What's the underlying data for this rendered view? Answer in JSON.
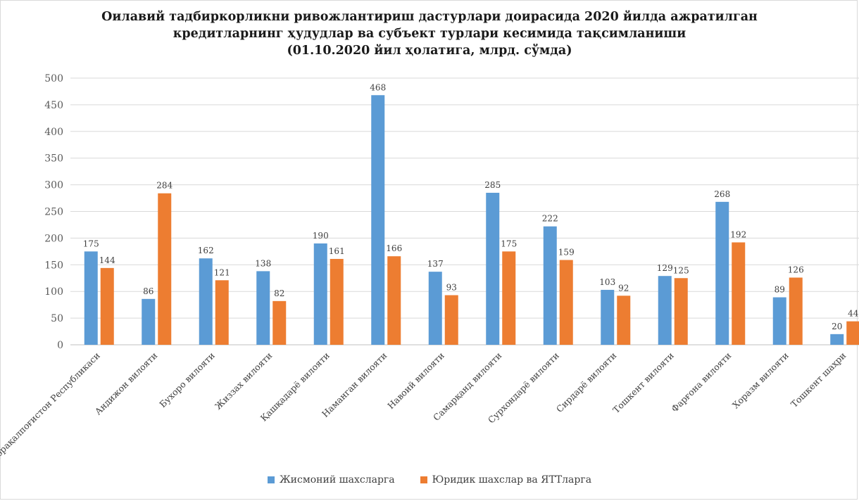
{
  "chart_data": {
    "type": "bar",
    "title": [
      "Оилавий тадбиркорликни ривожлантириш дастурлари доирасида 2020 йилда ажратилган",
      "кредитларнинг ҳудудлар ва субъект турлари кесимида тақсимланиши",
      "(01.10.2020 йил ҳолатига, млрд. сўмда)"
    ],
    "categories": [
      "Қорақалпоғистон Республикаси",
      "Андижон вилояти",
      "Бухоро вилояти",
      "Жиззах вилояти",
      "Қашқадарё вилояти",
      "Наманган вилояти",
      "Навоий вилояти",
      "Самарқанд вилояти",
      "Сурхондарё вилояти",
      "Сирдарё вилояти",
      "Тошкент вилояти",
      "Фарғона вилояти",
      "Хоразм вилояти",
      "Тошкент шаҳри"
    ],
    "series": [
      {
        "name": "Жисмоний шахсларга",
        "color": "#5b9bd5",
        "values": [
          175,
          86,
          162,
          138,
          190,
          468,
          137,
          285,
          222,
          103,
          129,
          268,
          89,
          20
        ]
      },
      {
        "name": "Юридик шахслар ва ЯТТларга",
        "color": "#ed7d31",
        "values": [
          144,
          284,
          121,
          82,
          161,
          166,
          93,
          175,
          159,
          92,
          125,
          192,
          126,
          44
        ]
      }
    ],
    "ylim": [
      0,
      500
    ],
    "yticks": [
      0,
      50,
      100,
      150,
      200,
      250,
      300,
      350,
      400,
      450,
      500
    ],
    "grid": true,
    "legend_position": "bottom",
    "xlabel": "",
    "ylabel": ""
  }
}
